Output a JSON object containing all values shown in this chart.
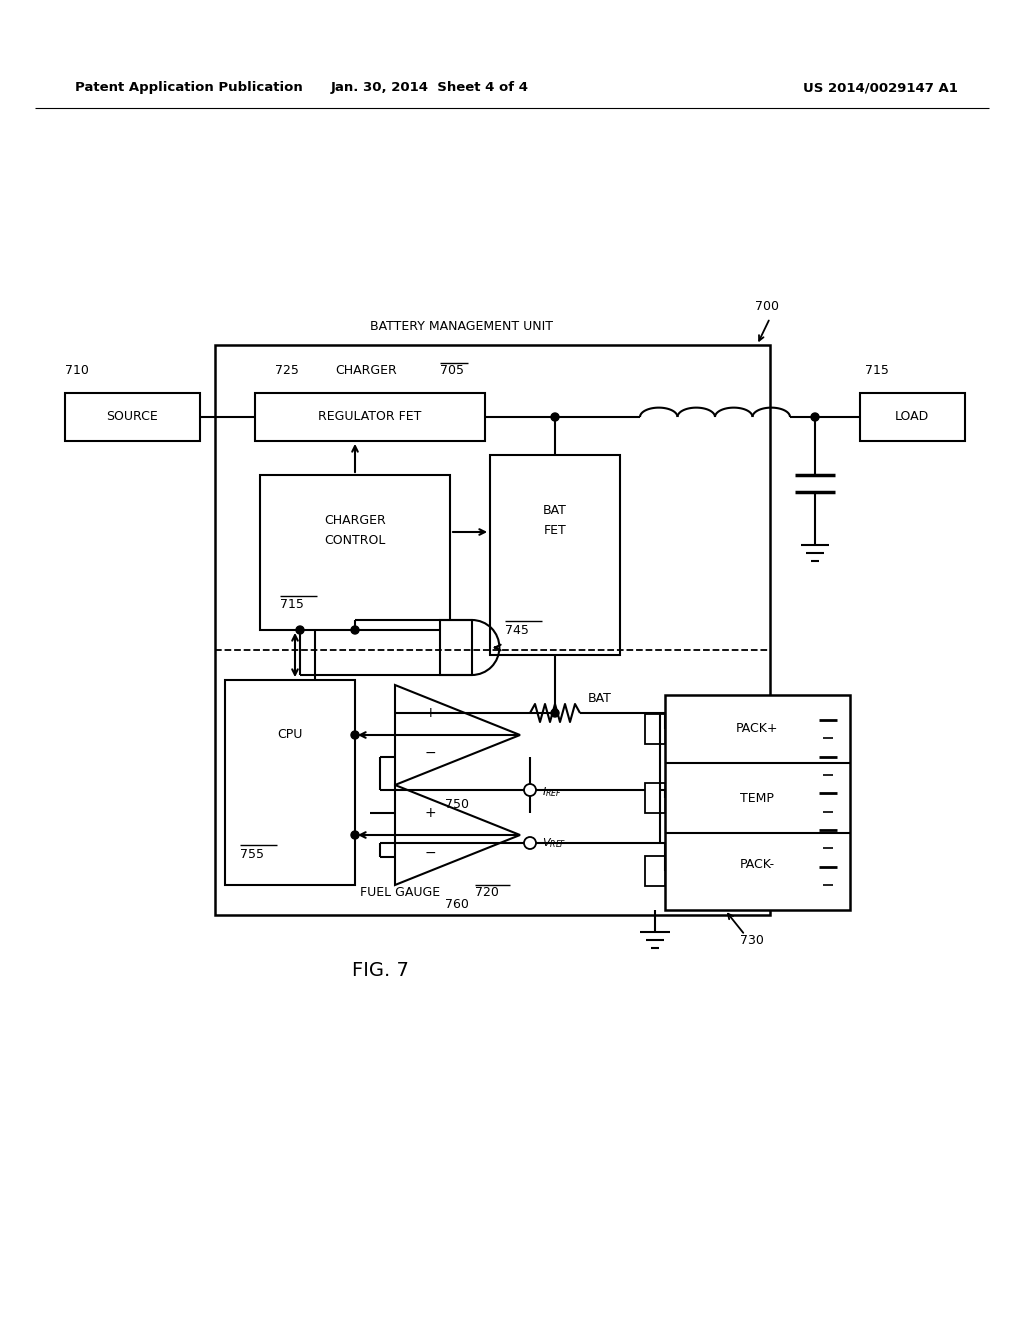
{
  "header_left": "Patent Application Publication",
  "header_mid": "Jan. 30, 2014  Sheet 4 of 4",
  "header_right": "US 2014/0029147 A1",
  "fig_label": "FIG. 7",
  "bg": "#ffffff"
}
